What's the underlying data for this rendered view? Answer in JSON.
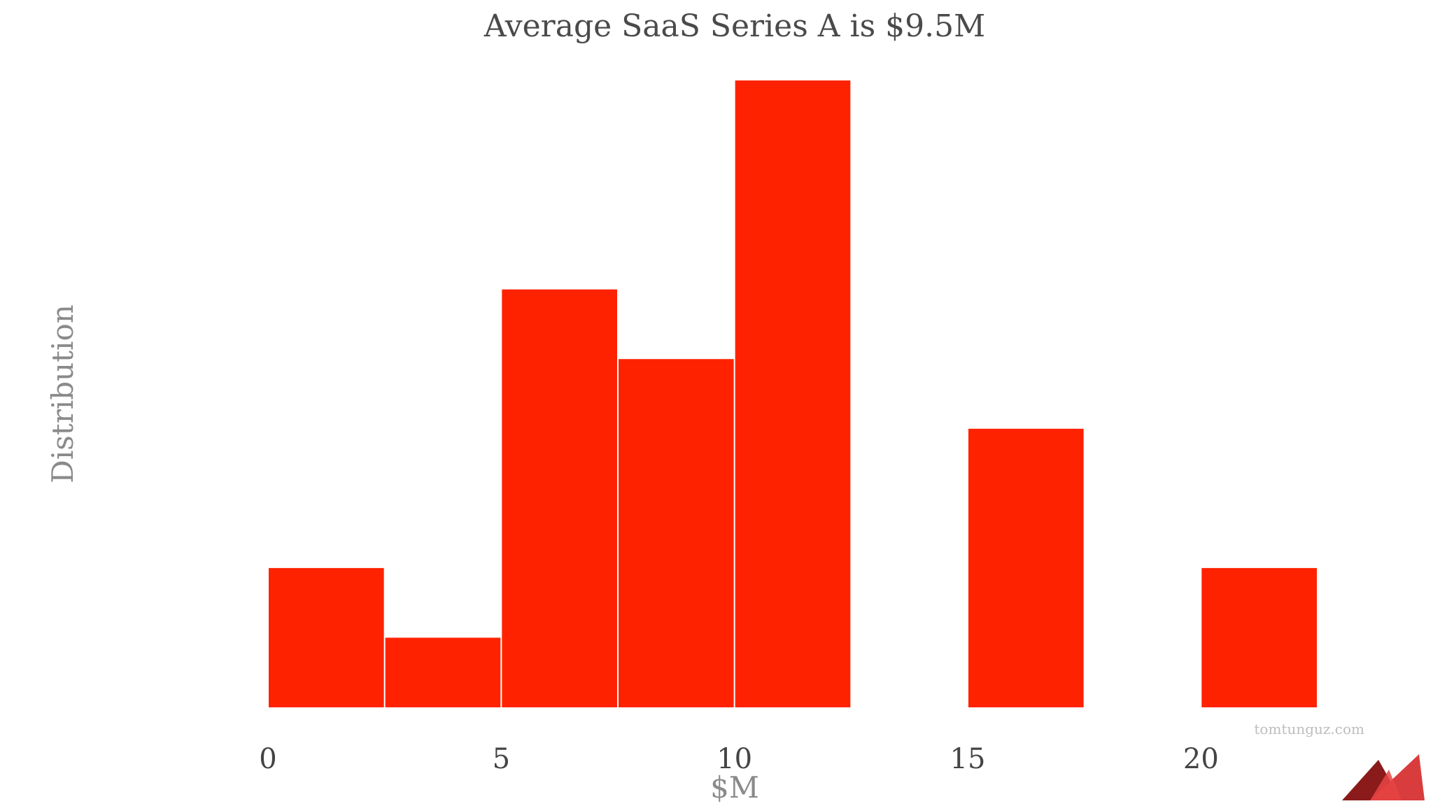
{
  "chart_data": {
    "type": "bar",
    "title": "Average SaaS Series A is $9.5M",
    "xlabel": "$M",
    "ylabel": "Distribution",
    "bin_width": 2.5,
    "bins": [
      {
        "start": 0,
        "end": 2.5,
        "value": 2
      },
      {
        "start": 2.5,
        "end": 5,
        "value": 1
      },
      {
        "start": 5,
        "end": 7.5,
        "value": 6
      },
      {
        "start": 7.5,
        "end": 10,
        "value": 5
      },
      {
        "start": 10,
        "end": 12.5,
        "value": 9
      },
      {
        "start": 12.5,
        "end": 15,
        "value": 0
      },
      {
        "start": 15,
        "end": 17.5,
        "value": 4
      },
      {
        "start": 17.5,
        "end": 20,
        "value": 0
      },
      {
        "start": 20,
        "end": 22.5,
        "value": 2
      }
    ],
    "xticks": [
      "0",
      "5",
      "10",
      "15",
      "20"
    ],
    "xtick_values": [
      0,
      5,
      10,
      15,
      20
    ],
    "xlim": [
      0,
      22.5
    ],
    "ylim": [
      0,
      9
    ],
    "bar_color": "#ff2200",
    "grid": false,
    "legend": "none"
  },
  "watermark": "tomtunguz.com",
  "logo_colors": [
    "#8b1a1a",
    "#d62b2b",
    "#e84545"
  ]
}
